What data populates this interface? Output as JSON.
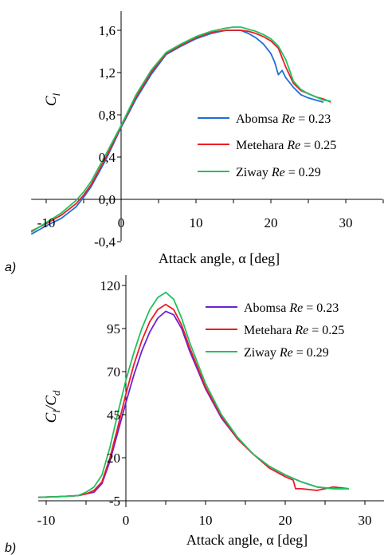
{
  "colors": {
    "Abomsa": "#1f6fd6",
    "Abomsa_b": "#6a22d8",
    "Metehara": "#ee1c24",
    "Ziway": "#22c15e",
    "axis": "#000000"
  },
  "panels": [
    {
      "panel_label": "a)",
      "xlabel": "Attack angle, α [deg]",
      "ylabel": "C",
      "ylabel_sub": "l",
      "legend": [
        {
          "site": "Abomsa",
          "re_label": "Re",
          "re_value": "= 0.23"
        },
        {
          "site": "Metehara",
          "re_label": "Re",
          "re_value": "= 0.25"
        },
        {
          "site": "Ziway",
          "re_label": "Re",
          "re_value": "= 0.29"
        }
      ]
    },
    {
      "panel_label": "b)",
      "xlabel": "Attack angle, α [deg]",
      "ylabel": "C",
      "ylabel_sub1": "l",
      "ylabel_slash": "/C",
      "ylabel_sub2": "d",
      "legend": [
        {
          "site": "Abomsa",
          "re_label": "Re",
          "re_value": "= 0.23"
        },
        {
          "site": "Metehara",
          "re_label": "Re",
          "re_value": "= 0.25"
        },
        {
          "site": "Ziway",
          "re_label": "Re",
          "re_value": "= 0.29"
        }
      ]
    }
  ],
  "chart_data": [
    {
      "type": "line",
      "xlabel": "Attack angle, α [deg]",
      "ylabel": "C_l",
      "xlim": [
        -12,
        37
      ],
      "ylim": [
        -0.4,
        1.8
      ],
      "xticks": [
        "-10",
        "0",
        "10",
        "20",
        "30"
      ],
      "yticks": [
        "-0,4",
        "0,0",
        "0,4",
        "0,8",
        "1,2",
        "1,6"
      ],
      "xtick_values": [
        -10,
        0,
        10,
        20,
        30
      ],
      "ytick_values": [
        -0.4,
        0.0,
        0.4,
        0.8,
        1.2,
        1.6
      ],
      "legend_position": "lower-right",
      "series": [
        {
          "name": "Abomsa Re = 0.23",
          "color": "#1f6fd6",
          "x": [
            -12,
            -10,
            -8,
            -6,
            -5,
            -4,
            -2,
            0,
            2,
            4,
            6,
            8,
            10,
            12,
            14,
            15,
            16,
            17,
            18,
            19,
            20,
            20.5,
            21,
            21.5,
            22,
            23,
            24,
            25,
            26,
            27
          ],
          "y": [
            -0.33,
            -0.25,
            -0.18,
            -0.07,
            0.02,
            0.12,
            0.38,
            0.68,
            0.95,
            1.18,
            1.37,
            1.45,
            1.52,
            1.57,
            1.6,
            1.6,
            1.6,
            1.57,
            1.53,
            1.47,
            1.38,
            1.3,
            1.18,
            1.22,
            1.15,
            1.06,
            0.99,
            0.96,
            0.94,
            0.92
          ]
        },
        {
          "name": "Metehara Re = 0.25",
          "color": "#ee1c24",
          "x": [
            -12,
            -10,
            -8,
            -6,
            -5,
            -4,
            -2,
            0,
            2,
            4,
            6,
            8,
            10,
            12,
            14,
            15,
            16,
            17,
            18,
            19,
            20,
            21,
            22,
            23,
            24,
            25,
            26,
            27,
            28
          ],
          "y": [
            -0.3,
            -0.23,
            -0.15,
            -0.04,
            0.04,
            0.14,
            0.4,
            0.69,
            0.97,
            1.2,
            1.38,
            1.46,
            1.53,
            1.58,
            1.6,
            1.6,
            1.6,
            1.59,
            1.57,
            1.54,
            1.5,
            1.43,
            1.25,
            1.1,
            1.03,
            1.0,
            0.97,
            0.95,
            0.92
          ]
        },
        {
          "name": "Ziway Re = 0.29",
          "color": "#22c15e",
          "x": [
            -12,
            -10,
            -8,
            -6,
            -5,
            -4,
            -2,
            0,
            2,
            4,
            6,
            8,
            10,
            12,
            14,
            15,
            16,
            17,
            18,
            19,
            20,
            21,
            22,
            23,
            24,
            25,
            26,
            27,
            28
          ],
          "y": [
            -0.31,
            -0.22,
            -0.13,
            -0.01,
            0.07,
            0.17,
            0.43,
            0.7,
            0.99,
            1.22,
            1.39,
            1.47,
            1.54,
            1.59,
            1.62,
            1.63,
            1.63,
            1.61,
            1.59,
            1.56,
            1.52,
            1.45,
            1.32,
            1.12,
            1.04,
            1.0,
            0.97,
            0.94,
            0.93
          ]
        }
      ]
    },
    {
      "type": "line",
      "xlabel": "Attack angle, α [deg]",
      "ylabel": "C_l/C_d",
      "xlim": [
        -11,
        37
      ],
      "ylim": [
        -5,
        120
      ],
      "xticks": [
        "-10",
        "0",
        "10",
        "20",
        "30"
      ],
      "yticks": [
        "-5",
        "20",
        "45",
        "70",
        "95",
        "120"
      ],
      "xtick_values": [
        -10,
        0,
        10,
        20,
        30
      ],
      "ytick_values": [
        -5,
        20,
        45,
        70,
        95,
        120
      ],
      "legend_position": "top-right",
      "series": [
        {
          "name": "Abomsa Re = 0.23",
          "color": "#6a22d8",
          "x": [
            -11,
            -8,
            -6,
            -5,
            -4,
            -3,
            -2,
            -1,
            0,
            1,
            2,
            3,
            4,
            5,
            6,
            7,
            8,
            10,
            12,
            14,
            16,
            18,
            20,
            22,
            24,
            26,
            28
          ],
          "y": [
            -3,
            -2.5,
            -2,
            -1,
            0,
            5,
            18,
            35,
            52,
            68,
            82,
            93,
            101,
            105,
            103,
            95,
            82,
            60,
            43,
            31,
            22,
            15,
            10,
            6,
            3,
            2,
            2
          ]
        },
        {
          "name": "Metehara Re = 0.25",
          "color": "#ee1c24",
          "x": [
            -11,
            -8,
            -6,
            -5,
            -4,
            -3,
            -2,
            -1,
            0,
            1,
            2,
            3,
            4,
            5,
            6,
            7,
            8,
            10,
            12,
            14,
            16,
            18,
            20,
            21,
            21.3,
            22,
            24,
            26,
            28
          ],
          "y": [
            -3,
            -2.5,
            -2,
            -1,
            1,
            6,
            20,
            38,
            57,
            74,
            88,
            99,
            106,
            109,
            106,
            97,
            84,
            61,
            44,
            31,
            22,
            14,
            9,
            7,
            2,
            2,
            1,
            3,
            2
          ]
        },
        {
          "name": "Ziway Re = 0.29",
          "color": "#22c15e",
          "x": [
            -11,
            -8,
            -6,
            -5,
            -4,
            -3,
            -2,
            -1,
            0,
            1,
            2,
            3,
            4,
            5,
            6,
            7,
            8,
            10,
            12,
            14,
            16,
            18,
            20,
            22,
            24,
            26,
            28
          ],
          "y": [
            -3,
            -2.5,
            -2,
            0,
            3,
            10,
            26,
            46,
            65,
            81,
            95,
            106,
            113,
            116,
            112,
            101,
            87,
            63,
            45,
            32,
            22,
            15,
            10,
            6,
            3,
            2,
            2
          ]
        }
      ]
    }
  ]
}
